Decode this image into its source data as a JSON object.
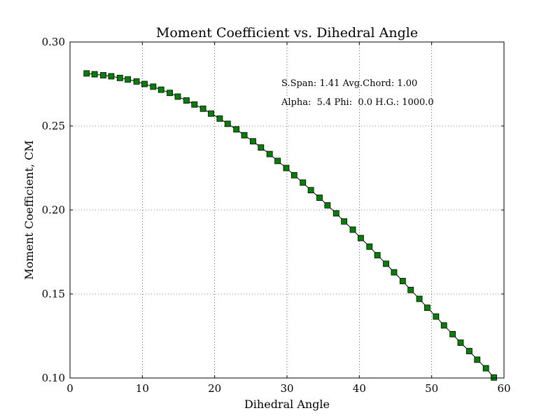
{
  "chart_data": {
    "type": "line",
    "title": "Moment Coefficient vs. Dihedral Angle",
    "xlabel": "Dihedral Angle",
    "ylabel": "Moment Coefficient, CM",
    "xlim": [
      0,
      60
    ],
    "ylim": [
      0.1,
      0.3
    ],
    "xticks": [
      0,
      10,
      20,
      30,
      40,
      50,
      60
    ],
    "xtick_labels": [
      "0",
      "10",
      "20",
      "30",
      "40",
      "50",
      "60"
    ],
    "yticks": [
      0.1,
      0.15,
      0.2,
      0.25,
      0.3
    ],
    "ytick_labels": [
      "0.10",
      "0.15",
      "0.20",
      "0.25",
      "0.30"
    ],
    "grid": true,
    "annotations": [
      "S.Span: 1.41 Avg.Chord: 1.00",
      "Alpha:  5.4 Phi:  0.0 H.G.: 1000.0"
    ],
    "series": [
      {
        "marker": "square",
        "color": "#008000",
        "line_color": "#000000",
        "x": [
          2.3,
          3.4,
          4.6,
          5.7,
          6.9,
          8.0,
          9.2,
          10.3,
          11.5,
          12.6,
          13.8,
          14.9,
          16.1,
          17.2,
          18.4,
          19.5,
          20.7,
          21.8,
          23.0,
          24.1,
          25.3,
          26.4,
          27.6,
          28.7,
          29.9,
          31.0,
          32.2,
          33.3,
          34.5,
          35.6,
          36.8,
          37.9,
          39.1,
          40.2,
          41.4,
          42.5,
          43.7,
          44.8,
          46.0,
          47.1,
          48.3,
          49.4,
          50.6,
          51.7,
          52.9,
          54.0,
          55.2,
          56.3,
          57.5,
          58.6
        ],
        "y": [
          0.2813,
          0.2808,
          0.2802,
          0.2796,
          0.2786,
          0.2777,
          0.2765,
          0.275,
          0.2734,
          0.2716,
          0.2697,
          0.2675,
          0.2652,
          0.2628,
          0.2603,
          0.2574,
          0.2544,
          0.2513,
          0.248,
          0.2445,
          0.2409,
          0.2372,
          0.2333,
          0.2292,
          0.225,
          0.2207,
          0.2163,
          0.2118,
          0.2073,
          0.2028,
          0.198,
          0.1932,
          0.1883,
          0.1833,
          0.1782,
          0.1731,
          0.168,
          0.1629,
          0.1577,
          0.1524,
          0.1471,
          0.1418,
          0.1366,
          0.1313,
          0.1261,
          0.121,
          0.116,
          0.1109,
          0.1058,
          0.1003
        ]
      }
    ]
  }
}
